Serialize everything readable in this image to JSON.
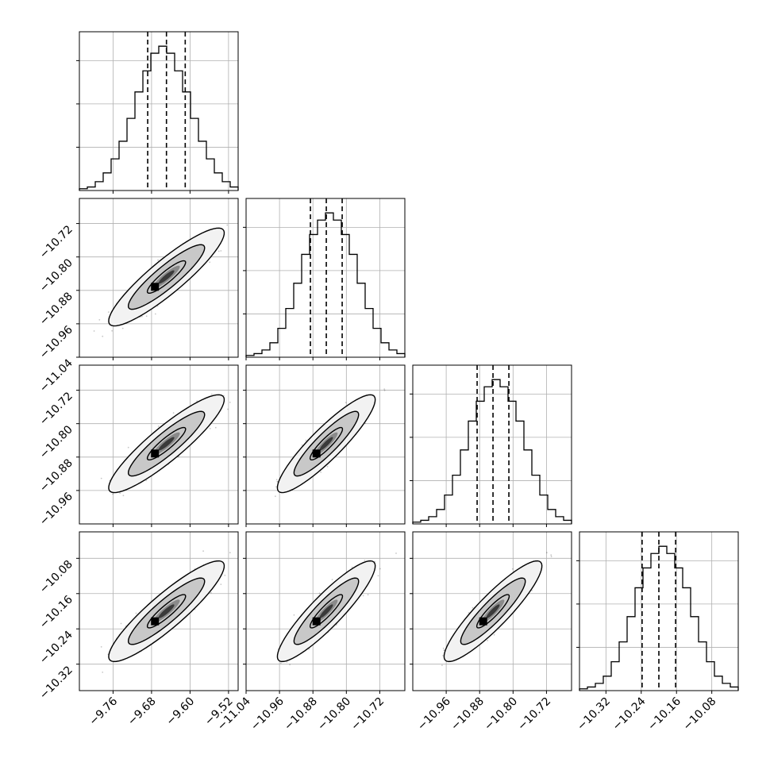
{
  "chart_data": {
    "type": "corner",
    "grid": true,
    "quantile_lines": [
      0.16,
      0.5,
      0.84
    ],
    "parameters": [
      {
        "index": 0,
        "mean": -9.649,
        "sd": 0.04,
        "range": [
          -9.83,
          -9.5
        ],
        "ticks": [
          -9.76,
          -9.68,
          -9.6,
          -9.52
        ]
      },
      {
        "index": 1,
        "mean": -10.848,
        "sd": 0.039,
        "range": [
          -11.04,
          -10.66
        ],
        "ticks": [
          -11.04,
          -10.96,
          -10.88,
          -10.8,
          -10.72
        ]
      },
      {
        "index": 2,
        "mean": -10.848,
        "sd": 0.039,
        "range": [
          -11.04,
          -10.66
        ],
        "ticks": [
          -10.96,
          -10.88,
          -10.8,
          -10.72
        ]
      },
      {
        "index": 3,
        "mean": -10.2,
        "sd": 0.038,
        "range": [
          -10.38,
          -10.02
        ],
        "ticks": [
          -10.32,
          -10.24,
          -10.16,
          -10.08
        ]
      }
    ],
    "quantiles": [
      [
        -9.688,
        -9.649,
        -9.61
      ],
      [
        -10.886,
        -10.848,
        -10.81
      ],
      [
        -10.886,
        -10.848,
        -10.81
      ],
      [
        -10.238,
        -10.2,
        -10.162
      ]
    ],
    "correlation": 0.9,
    "histograms": [
      {
        "edges_from": -9.83,
        "bin_width": 0.0165,
        "counts": [
          1,
          2,
          5,
          10,
          18,
          28,
          41,
          56,
          68,
          78,
          82,
          78,
          68,
          56,
          41,
          28,
          18,
          10,
          5,
          2
        ]
      },
      {
        "edges_from": -11.04,
        "bin_width": 0.019,
        "counts": [
          1,
          2,
          4,
          8,
          16,
          27,
          41,
          57,
          68,
          76,
          80,
          76,
          68,
          57,
          41,
          27,
          16,
          8,
          4,
          2
        ]
      },
      {
        "edges_from": -11.04,
        "bin_width": 0.019,
        "counts": [
          1,
          2,
          4,
          8,
          16,
          27,
          41,
          57,
          68,
          76,
          80,
          76,
          68,
          57,
          41,
          27,
          16,
          8,
          4,
          2
        ]
      },
      {
        "edges_from": -10.38,
        "bin_width": 0.018,
        "counts": [
          1,
          2,
          4,
          8,
          16,
          27,
          41,
          57,
          68,
          76,
          80,
          76,
          68,
          57,
          41,
          27,
          16,
          8,
          4,
          2
        ]
      }
    ],
    "colors": {
      "line": "#000000",
      "grid": "#b0b0b0",
      "points": "#000000",
      "frame": "#000000"
    }
  }
}
